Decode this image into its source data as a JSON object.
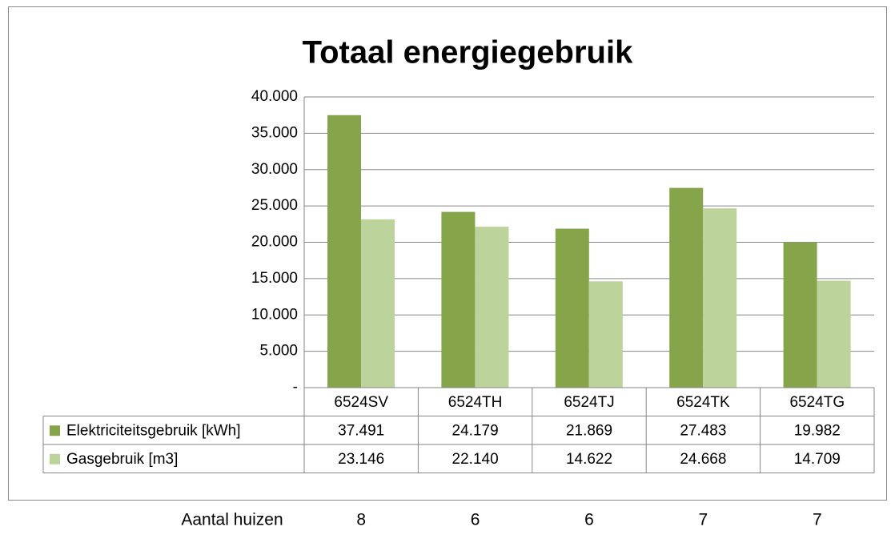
{
  "chart_data": {
    "type": "bar",
    "title": "Totaal energiegebruik",
    "categories": [
      "6524SV",
      "6524TH",
      "6524TJ",
      "6524TK",
      "6524TG"
    ],
    "series": [
      {
        "name": "Elektriciteitsgebruik [kWh]",
        "color": "#86a44a",
        "values": [
          37491,
          24179,
          21869,
          27483,
          19982
        ],
        "value_labels": [
          "37.491",
          "24.179",
          "21.869",
          "27.483",
          "19.982"
        ]
      },
      {
        "name": "Gasgebruik [m3]",
        "color": "#bcd39b",
        "values": [
          23146,
          22140,
          14622,
          24668,
          14709
        ],
        "value_labels": [
          "23.146",
          "22.140",
          "14.622",
          "24.668",
          "14.709"
        ]
      }
    ],
    "ylim": [
      0,
      40000
    ],
    "yticks": [
      {
        "value": 0,
        "label": "-"
      },
      {
        "value": 5000,
        "label": "5.000"
      },
      {
        "value": 10000,
        "label": "10.000"
      },
      {
        "value": 15000,
        "label": "15.000"
      },
      {
        "value": 20000,
        "label": "20.000"
      },
      {
        "value": 25000,
        "label": "25.000"
      },
      {
        "value": 30000,
        "label": "30.000"
      },
      {
        "value": 35000,
        "label": "35.000"
      },
      {
        "value": 40000,
        "label": "40.000"
      }
    ],
    "grid": true
  },
  "footer_row": {
    "label": "Aantal huizen",
    "values": [
      8,
      6,
      6,
      7,
      7
    ]
  }
}
